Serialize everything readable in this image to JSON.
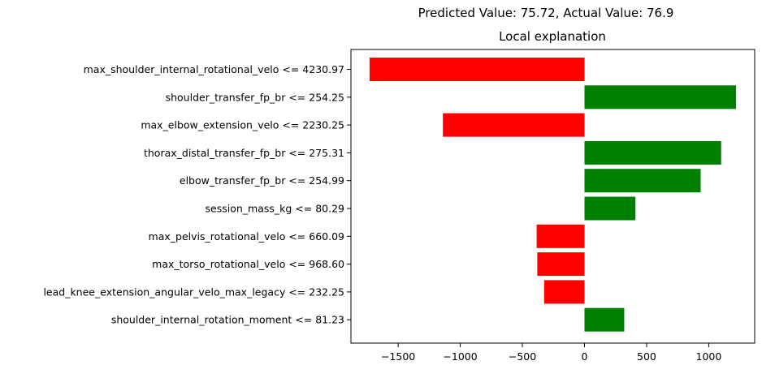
{
  "chart_data": {
    "type": "bar",
    "orientation": "horizontal",
    "suptitle": "Predicted Value: 75.72, Actual Value: 76.9",
    "title": "Local explanation",
    "xlabel": "",
    "ylabel": "",
    "xlim": [
      -1880,
      1370
    ],
    "xticks": [
      -1500,
      -1000,
      -500,
      0,
      500,
      1000
    ],
    "xtick_labels": [
      "−1500",
      "−1000",
      "−500",
      "0",
      "500",
      "1000"
    ],
    "grid": false,
    "legend": "none",
    "positive_color": "#008000",
    "negative_color": "#ff0000",
    "categories": [
      "max_shoulder_internal_rotational_velo <= 4230.97",
      "shoulder_transfer_fp_br <= 254.25",
      "max_elbow_extension_velo <= 2230.25",
      "thorax_distal_transfer_fp_br <= 275.31",
      "elbow_transfer_fp_br <= 254.99",
      "session_mass_kg <= 80.29",
      "max_pelvis_rotational_velo <= 660.09",
      "max_torso_rotational_velo <= 968.60",
      "lead_knee_extension_angular_velo_max_legacy <= 232.25",
      "shoulder_internal_rotation_moment <= 81.23"
    ],
    "values": [
      -1730,
      1220,
      -1140,
      1100,
      935,
      410,
      -385,
      -380,
      -325,
      320
    ]
  }
}
